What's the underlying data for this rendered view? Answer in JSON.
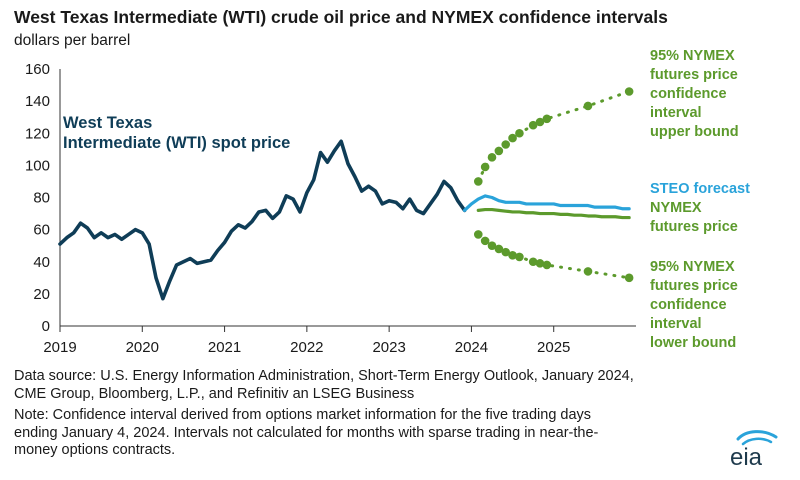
{
  "title": "West Texas Intermediate (WTI) crude oil price and NYMEX confidence intervals",
  "subtitle": "dollars per barrel",
  "source_lines": [
    "Data source: U.S. Energy Information Administration, Short-Term Energy Outlook, January 2024,",
    "CME Group, Bloomberg, L.P., and Refinitiv an LSEG Business"
  ],
  "note_lines": [
    "Note: Confidence interval derived from options market information for the five trading days",
    "ending January 4, 2024. Intervals not calculated for months with sparse trading in near-the-",
    "money options contracts."
  ],
  "logo_text": "eia",
  "colors": {
    "spot": "#0f3d57",
    "steo": "#2aa3da",
    "nymex": "#5c9a2c",
    "axis": "#333333"
  },
  "chart_data": {
    "type": "line",
    "xlim": [
      2019,
      2026
    ],
    "ylim": [
      0,
      160
    ],
    "x_ticks": [
      "2019",
      "2020",
      "2021",
      "2022",
      "2023",
      "2024",
      "2025"
    ],
    "y_ticks": [
      "0",
      "20",
      "40",
      "60",
      "80",
      "100",
      "120",
      "140",
      "160"
    ],
    "annotations": {
      "spot": [
        "West Texas",
        "Intermediate (WTI) spot price"
      ],
      "steo_word": "STEO",
      "steo_rest": "forecast",
      "nymex": [
        "NYMEX",
        "futures price"
      ],
      "upper": [
        "95% NYMEX",
        "futures price",
        "confidence",
        "interval",
        "upper bound"
      ],
      "lower": [
        "95% NYMEX",
        "futures price",
        "confidence",
        "interval",
        "lower bound"
      ]
    },
    "series": [
      {
        "name": "West Texas Intermediate (WTI) spot price",
        "style": "solid",
        "color_key": "spot",
        "points": [
          [
            "2019-01",
            51
          ],
          [
            "2019-02",
            55
          ],
          [
            "2019-03",
            58
          ],
          [
            "2019-04",
            64
          ],
          [
            "2019-05",
            61
          ],
          [
            "2019-06",
            55
          ],
          [
            "2019-07",
            58
          ],
          [
            "2019-08",
            55
          ],
          [
            "2019-09",
            57
          ],
          [
            "2019-10",
            54
          ],
          [
            "2019-11",
            57
          ],
          [
            "2019-12",
            60
          ],
          [
            "2020-01",
            58
          ],
          [
            "2020-02",
            51
          ],
          [
            "2020-03",
            30
          ],
          [
            "2020-04",
            17
          ],
          [
            "2020-05",
            28
          ],
          [
            "2020-06",
            38
          ],
          [
            "2020-07",
            40
          ],
          [
            "2020-08",
            42
          ],
          [
            "2020-09",
            39
          ],
          [
            "2020-10",
            40
          ],
          [
            "2020-11",
            41
          ],
          [
            "2020-12",
            47
          ],
          [
            "2021-01",
            52
          ],
          [
            "2021-02",
            59
          ],
          [
            "2021-03",
            63
          ],
          [
            "2021-04",
            61
          ],
          [
            "2021-05",
            65
          ],
          [
            "2021-06",
            71
          ],
          [
            "2021-07",
            72
          ],
          [
            "2021-08",
            67
          ],
          [
            "2021-09",
            71
          ],
          [
            "2021-10",
            81
          ],
          [
            "2021-11",
            79
          ],
          [
            "2021-12",
            71
          ],
          [
            "2022-01",
            83
          ],
          [
            "2022-02",
            91
          ],
          [
            "2022-03",
            108
          ],
          [
            "2022-04",
            102
          ],
          [
            "2022-05",
            109
          ],
          [
            "2022-06",
            115
          ],
          [
            "2022-07",
            101
          ],
          [
            "2022-08",
            93
          ],
          [
            "2022-09",
            84
          ],
          [
            "2022-10",
            87
          ],
          [
            "2022-11",
            84
          ],
          [
            "2022-12",
            76
          ],
          [
            "2023-01",
            78
          ],
          [
            "2023-02",
            77
          ],
          [
            "2023-03",
            73
          ],
          [
            "2023-04",
            79
          ],
          [
            "2023-05",
            72
          ],
          [
            "2023-06",
            70
          ],
          [
            "2023-07",
            76
          ],
          [
            "2023-08",
            82
          ],
          [
            "2023-09",
            90
          ],
          [
            "2023-10",
            86
          ],
          [
            "2023-11",
            78
          ],
          [
            "2023-12",
            72
          ]
        ]
      },
      {
        "name": "STEO forecast",
        "style": "solid",
        "color_key": "steo",
        "points": [
          [
            "2023-12",
            72
          ],
          [
            "2024-01",
            76
          ],
          [
            "2024-02",
            79
          ],
          [
            "2024-03",
            81
          ],
          [
            "2024-04",
            80
          ],
          [
            "2024-05",
            78
          ],
          [
            "2024-06",
            77
          ],
          [
            "2024-07",
            77
          ],
          [
            "2024-08",
            77
          ],
          [
            "2024-09",
            76
          ],
          [
            "2024-10",
            76
          ],
          [
            "2024-11",
            76
          ],
          [
            "2024-12",
            76
          ],
          [
            "2025-01",
            76
          ],
          [
            "2025-02",
            75
          ],
          [
            "2025-03",
            75
          ],
          [
            "2025-04",
            75
          ],
          [
            "2025-05",
            75
          ],
          [
            "2025-06",
            75
          ],
          [
            "2025-07",
            74
          ],
          [
            "2025-08",
            74
          ],
          [
            "2025-09",
            74
          ],
          [
            "2025-10",
            74
          ],
          [
            "2025-11",
            73
          ],
          [
            "2025-12",
            73
          ]
        ]
      },
      {
        "name": "NYMEX futures price",
        "style": "solid",
        "color_key": "nymex",
        "points": [
          [
            "2024-02",
            72
          ],
          [
            "2024-03",
            72.5
          ],
          [
            "2024-04",
            72.5
          ],
          [
            "2024-05",
            72
          ],
          [
            "2024-06",
            71.5
          ],
          [
            "2024-07",
            71
          ],
          [
            "2024-08",
            71
          ],
          [
            "2024-09",
            70.5
          ],
          [
            "2024-10",
            70.5
          ],
          [
            "2024-11",
            70
          ],
          [
            "2024-12",
            70
          ],
          [
            "2025-01",
            70
          ],
          [
            "2025-02",
            69.5
          ],
          [
            "2025-03",
            69.5
          ],
          [
            "2025-04",
            69
          ],
          [
            "2025-05",
            69
          ],
          [
            "2025-06",
            68.5
          ],
          [
            "2025-07",
            68.5
          ],
          [
            "2025-08",
            68
          ],
          [
            "2025-09",
            68
          ],
          [
            "2025-10",
            68
          ],
          [
            "2025-11",
            67.5
          ],
          [
            "2025-12",
            67.5
          ]
        ]
      },
      {
        "name": "95% NYMEX futures price confidence interval upper bound",
        "style": "dotted",
        "color_key": "nymex",
        "points": [
          [
            "2024-02",
            90
          ],
          [
            "2024-03",
            99
          ],
          [
            "2024-04",
            105
          ],
          [
            "2024-05",
            109
          ],
          [
            "2024-06",
            113
          ],
          [
            "2024-07",
            117
          ],
          [
            "2024-08",
            120
          ],
          [
            "2024-10",
            125
          ],
          [
            "2024-11",
            127
          ],
          [
            "2024-12",
            129
          ],
          [
            "2025-06",
            137
          ],
          [
            "2025-12",
            146
          ]
        ]
      },
      {
        "name": "95% NYMEX futures price confidence interval lower bound",
        "style": "dotted",
        "color_key": "nymex",
        "points": [
          [
            "2024-02",
            57
          ],
          [
            "2024-03",
            53
          ],
          [
            "2024-04",
            50
          ],
          [
            "2024-05",
            48
          ],
          [
            "2024-06",
            46
          ],
          [
            "2024-07",
            44
          ],
          [
            "2024-08",
            43
          ],
          [
            "2024-10",
            40
          ],
          [
            "2024-11",
            39
          ],
          [
            "2024-12",
            38
          ],
          [
            "2025-06",
            34
          ],
          [
            "2025-12",
            30
          ]
        ]
      }
    ]
  }
}
